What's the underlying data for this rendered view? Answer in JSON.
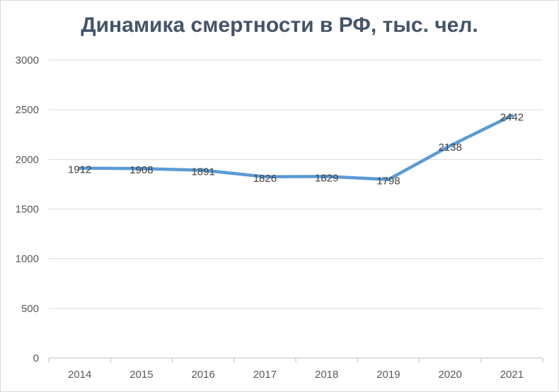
{
  "chart_data": {
    "type": "line",
    "title": "Динамика смертности в РФ, тыс. чел.",
    "categories": [
      "2014",
      "2015",
      "2016",
      "2017",
      "2018",
      "2019",
      "2020",
      "2021"
    ],
    "series": [
      {
        "values": [
          1912,
          1908,
          1891,
          1826,
          1829,
          1798,
          2138,
          2442
        ]
      }
    ],
    "ylim": [
      0,
      3000
    ],
    "yticks": [
      0,
      500,
      1000,
      1500,
      2000,
      2500,
      3000
    ],
    "grid": true,
    "data_labels": true,
    "colors": {
      "line": "#5b9bd5",
      "grid": "#d9d9d9",
      "title": "#44546a",
      "axis": "#bfbfbf"
    }
  }
}
